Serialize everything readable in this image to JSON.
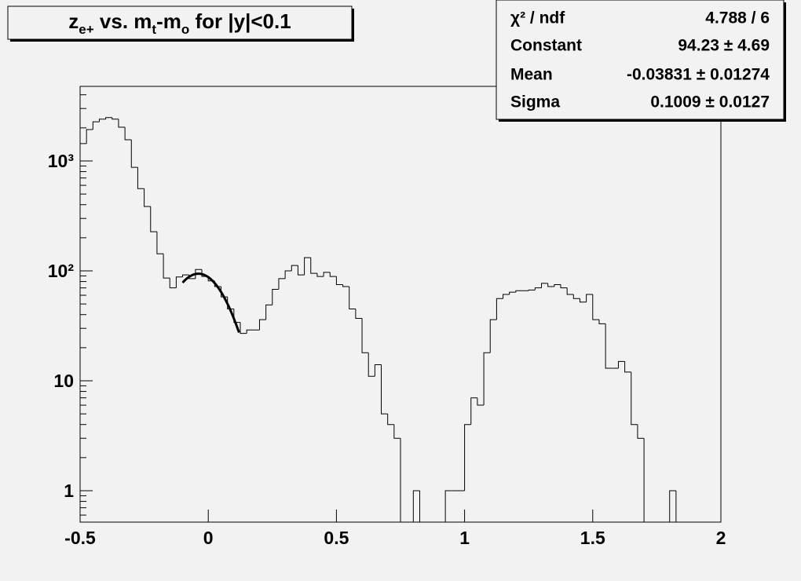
{
  "chart_data": {
    "type": "histogram",
    "title_parts": [
      {
        "text": "z"
      },
      {
        "text": "e+",
        "sub": true
      },
      {
        "text": " vs. m"
      },
      {
        "text": "t",
        "sub": true
      },
      {
        "text": "-m"
      },
      {
        "text": "o",
        "sub": true
      },
      {
        "text": " for |y|<0.1"
      }
    ],
    "bins": [
      -0.5,
      -0.475,
      -0.45,
      -0.425,
      -0.4,
      -0.375,
      -0.35,
      -0.325,
      -0.3,
      -0.275,
      -0.25,
      -0.225,
      -0.2,
      -0.175,
      -0.15,
      -0.125,
      -0.1,
      -0.075,
      -0.05,
      -0.025,
      0,
      0.025,
      0.05,
      0.075,
      0.1,
      0.125,
      0.15,
      0.175,
      0.2,
      0.225,
      0.25,
      0.275,
      0.3,
      0.325,
      0.35,
      0.375,
      0.4,
      0.425,
      0.45,
      0.475,
      0.5,
      0.525,
      0.55,
      0.575,
      0.6,
      0.625,
      0.65,
      0.675,
      0.7,
      0.725,
      0.75,
      0.775,
      0.8,
      0.825,
      0.85,
      0.875,
      0.9,
      0.925,
      0.95,
      0.975,
      1,
      1.025,
      1.05,
      1.075,
      1.1,
      1.125,
      1.15,
      1.175,
      1.2,
      1.225,
      1.25,
      1.275,
      1.3,
      1.325,
      1.35,
      1.375,
      1.4,
      1.425,
      1.45,
      1.475,
      1.5,
      1.525,
      1.55,
      1.575,
      1.6,
      1.625,
      1.65,
      1.675,
      1.7,
      1.725,
      1.75,
      1.775,
      1.8,
      1.825,
      1.85,
      1.875,
      1.9,
      1.925,
      1.95,
      1.975,
      2
    ],
    "values": [
      1440,
      1930,
      2270,
      2400,
      2480,
      2400,
      2030,
      1560,
      875,
      560,
      385,
      227,
      143,
      86,
      70,
      88,
      92,
      85,
      103,
      89,
      81,
      72,
      58,
      45,
      34,
      27,
      29,
      29,
      36,
      49,
      68,
      85,
      100,
      112,
      92,
      132,
      95,
      89,
      97,
      89,
      75,
      72,
      45,
      37,
      18,
      11,
      14,
      5,
      4,
      3,
      0,
      0,
      1,
      0,
      0,
      0,
      0,
      1,
      1,
      1,
      4,
      7,
      6,
      18,
      36,
      56,
      61,
      64,
      66,
      66,
      67,
      70,
      77,
      72,
      75,
      70,
      61,
      56,
      52,
      61,
      36,
      33,
      13,
      13,
      15,
      12,
      4,
      3,
      0,
      0,
      0,
      0,
      1,
      0,
      0,
      0,
      0,
      0,
      0,
      0
    ],
    "color": "#000000",
    "fit": {
      "constant": 94.23,
      "mean": -0.03831,
      "sigma": 0.1009,
      "range": [
        -0.1,
        0.12
      ],
      "color": "#000000"
    },
    "xlim": [
      -0.5,
      2
    ],
    "xticks": [
      -0.5,
      0,
      0.5,
      1,
      1.5,
      2
    ],
    "ylim": [
      0.518,
      4770
    ],
    "ylog": true,
    "yticks": [
      1,
      10,
      {
        "value": 100,
        "label": "10²"
      },
      {
        "value": 1000,
        "label": "10³"
      }
    ],
    "yminorticks": [
      0.6,
      0.7,
      0.8,
      0.9,
      2,
      3,
      4,
      5,
      6,
      7,
      8,
      9,
      20,
      30,
      40,
      50,
      60,
      70,
      80,
      90,
      200,
      300,
      400,
      500,
      600,
      700,
      800,
      900,
      2000,
      3000,
      4000
    ],
    "stats_box": [
      {
        "label": "χ² / ndf",
        "value": "4.788 / 6"
      },
      {
        "label": "Constant",
        "value": "94.23 ± 4.69"
      },
      {
        "label": "Mean",
        "value": "-0.03831 ± 0.01274"
      },
      {
        "label": "Sigma",
        "value": "0.1009 ± 0.0127"
      }
    ]
  }
}
